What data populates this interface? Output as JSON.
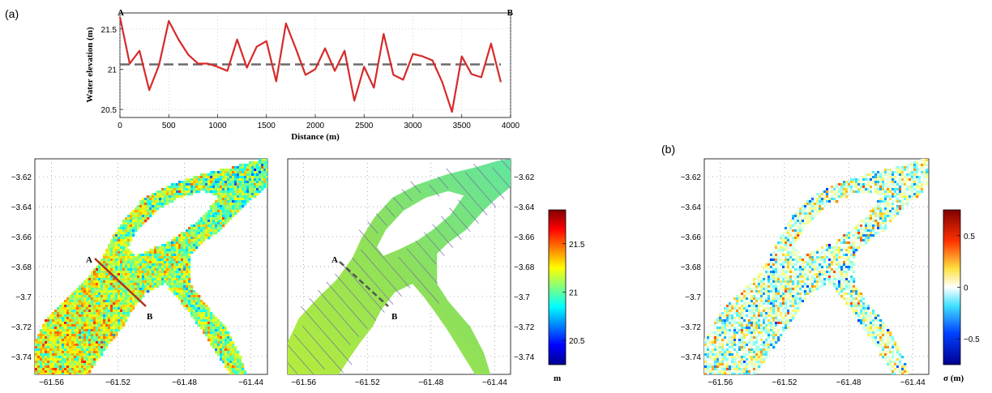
{
  "panel_labels": {
    "a": "(a)",
    "b": "(b)"
  },
  "colors": {
    "profile_line": "#d62a2a",
    "mean_line": "#6a6a6a",
    "river_mid": "#8ee05a",
    "contour": "#7070a0"
  },
  "chart_data": [
    {
      "type": "line",
      "panel": "(a) profile",
      "xlabel": "Distance (m)",
      "ylabel": "Water elevation (m)",
      "xlim": [
        0,
        4000
      ],
      "ylim": [
        20.4,
        21.7
      ],
      "xticks": [
        "0",
        "500",
        "1000",
        "1500",
        "2000",
        "2500",
        "3000",
        "3500",
        "4000"
      ],
      "yticks": [
        "20.5",
        "21",
        "21.5"
      ],
      "end_labels": {
        "start": "A",
        "end": "B"
      },
      "series": [
        {
          "x": [
            0,
            100,
            200,
            300,
            400,
            500,
            600,
            700,
            800,
            900,
            1000,
            1100,
            1200,
            1300,
            1400,
            1500,
            1600,
            1700,
            1800,
            1900,
            2000,
            2100,
            2200,
            2300,
            2400,
            2500,
            2600,
            2700,
            2800,
            2900,
            3000,
            3100,
            3200,
            3300,
            3400,
            3500,
            3600,
            3700,
            3800,
            3900
          ],
          "values": [
            21.65,
            21.07,
            21.23,
            20.74,
            21.05,
            21.6,
            21.37,
            21.18,
            21.07,
            21.07,
            21.03,
            20.98,
            21.37,
            21.02,
            21.28,
            21.35,
            20.85,
            21.57,
            21.26,
            20.93,
            21.0,
            21.26,
            20.98,
            21.23,
            20.61,
            21.03,
            20.77,
            21.44,
            20.93,
            20.87,
            21.19,
            21.16,
            21.11,
            20.84,
            20.47,
            21.16,
            20.94,
            20.9,
            21.32,
            20.84
          ]
        },
        {
          "style": "dashed",
          "x": [
            0,
            3900
          ],
          "values": [
            21.06,
            21.06
          ]
        }
      ]
    },
    {
      "type": "heatmap",
      "panel": "(a) noisy water elevation map",
      "xticks": [
        "−61.56",
        "−61.52",
        "−61.48",
        "−61.44"
      ],
      "yticks": [
        "−3.62",
        "−3.64",
        "−3.66",
        "−3.68",
        "−3.7",
        "−3.72",
        "−3.74"
      ],
      "xlim": [
        -61.57,
        -61.43
      ],
      "ylim": [
        -3.752,
        -3.608
      ],
      "section_labels": {
        "start": "A",
        "end": "B"
      }
    },
    {
      "type": "heatmap",
      "panel": "(a) smoothed water elevation map",
      "xticks": [
        "−61.56",
        "−61.52",
        "−61.48",
        "−61.44"
      ],
      "yticks": [
        "−3.62",
        "−3.64",
        "−3.66",
        "−3.68",
        "−3.7",
        "−3.72",
        "−3.74"
      ],
      "xlim": [
        -61.57,
        -61.43
      ],
      "ylim": [
        -3.752,
        -3.608
      ],
      "section_labels": {
        "start": "A",
        "end": "B"
      },
      "colorbar": {
        "label": "m",
        "ticks": [
          "21.5",
          "21",
          "20.5"
        ],
        "range": [
          20.25,
          21.85
        ]
      }
    },
    {
      "type": "heatmap",
      "panel": "(b) uncertainty map",
      "xticks": [
        "−61.56",
        "−61.52",
        "−61.48",
        "−61.44"
      ],
      "yticks": [
        "−3.62",
        "−3.64",
        "−3.66",
        "−3.68",
        "−3.7",
        "−3.72",
        "−3.74"
      ],
      "xlim": [
        -61.57,
        -61.43
      ],
      "ylim": [
        -3.752,
        -3.608
      ],
      "colorbar": {
        "label": "σ (m)",
        "ticks": [
          "0.5",
          "0",
          "−0.5"
        ],
        "range": [
          -0.75,
          0.75
        ]
      }
    }
  ]
}
